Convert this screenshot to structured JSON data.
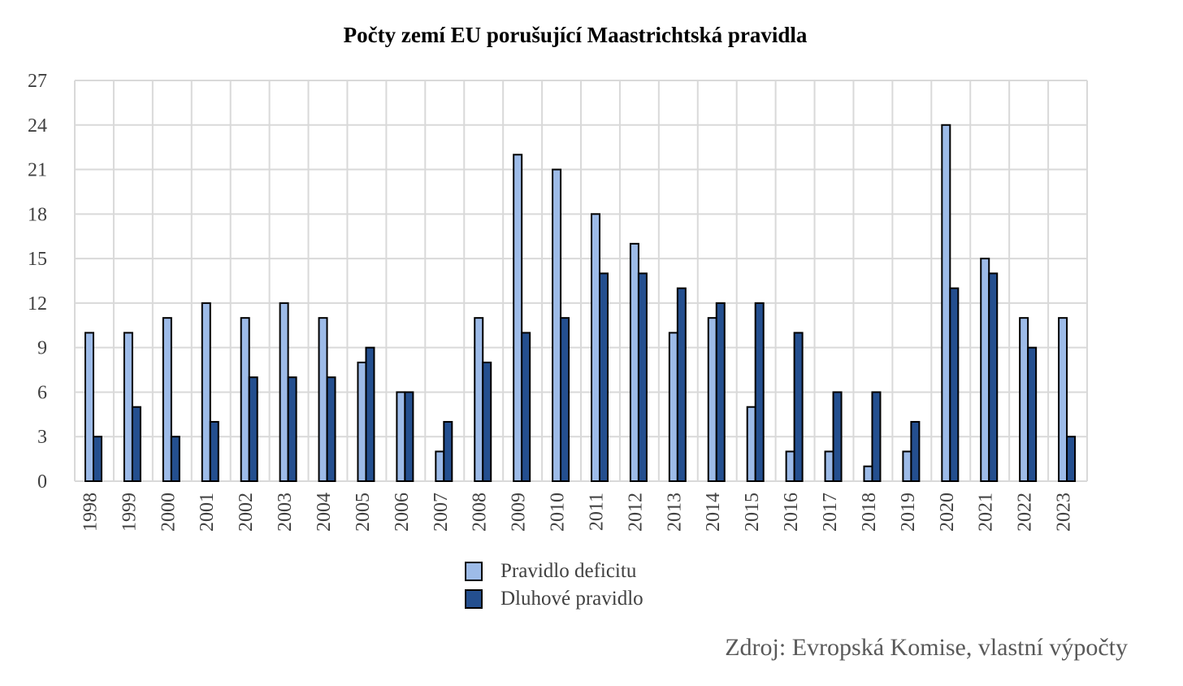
{
  "chart_data": {
    "type": "bar",
    "title": "Počty zemí EU porušující Maastrichtská pravidla",
    "categories": [
      "1998",
      "1999",
      "2000",
      "2001",
      "2002",
      "2003",
      "2004",
      "2005",
      "2006",
      "2007",
      "2008",
      "2009",
      "2010",
      "2011",
      "2012",
      "2013",
      "2014",
      "2015",
      "2016",
      "2017",
      "2018",
      "2019",
      "2020",
      "2021",
      "2022",
      "2023"
    ],
    "series": [
      {
        "name": "Pravidlo deficitu",
        "color": "#9dbbe8",
        "values": [
          10,
          10,
          11,
          12,
          11,
          12,
          11,
          8,
          6,
          2,
          11,
          22,
          21,
          18,
          16,
          10,
          11,
          5,
          2,
          2,
          1,
          2,
          24,
          15,
          11,
          11
        ]
      },
      {
        "name": "Dluhové pravidlo",
        "color": "#244f8f",
        "values": [
          3,
          5,
          3,
          4,
          7,
          7,
          7,
          9,
          6,
          4,
          8,
          10,
          11,
          14,
          14,
          13,
          12,
          12,
          10,
          6,
          6,
          4,
          13,
          14,
          9,
          3
        ]
      }
    ],
    "yticks": [
      "0",
      "3",
      "6",
      "9",
      "12",
      "15",
      "18",
      "21",
      "24",
      "27"
    ],
    "ylim": [
      0,
      27
    ],
    "xlabel": "",
    "ylabel": "",
    "grid": true,
    "legend_position": "bottom"
  },
  "legend": {
    "items": [
      {
        "label": "Pravidlo deficitu",
        "color": "#9dbbe8"
      },
      {
        "label": "Dluhové pravidlo",
        "color": "#244f8f"
      }
    ]
  },
  "source_note": "Zdroj: Evropská Komise, vlastní výpočty"
}
